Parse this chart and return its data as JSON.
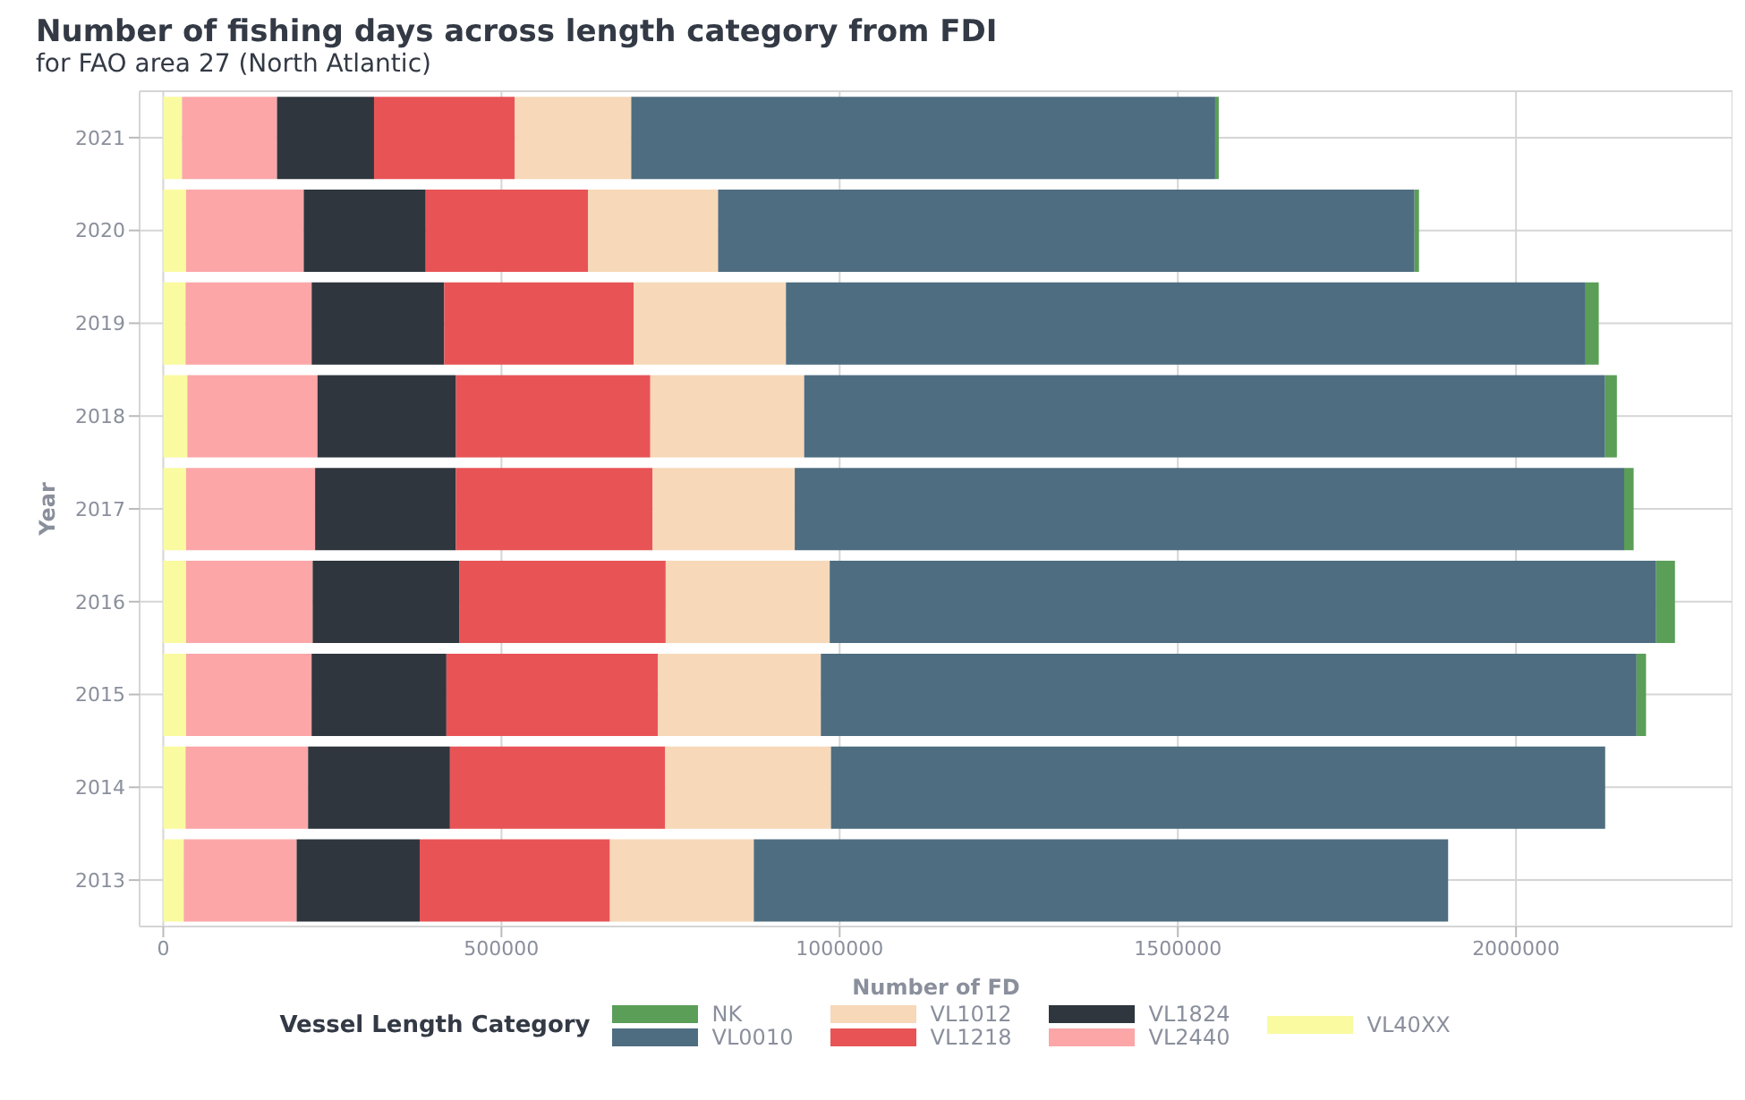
{
  "chart_data": {
    "type": "bar",
    "orientation": "horizontal",
    "stacked": true,
    "title": "Number of fishing days across length category from FDI",
    "subtitle": "for FAO area 27 (North Atlantic)",
    "xlabel": "Number of FD",
    "ylabel": "Year",
    "legend_title": "Vessel Length Category",
    "categories": [
      "2021",
      "2020",
      "2019",
      "2018",
      "2017",
      "2016",
      "2015",
      "2014",
      "2013"
    ],
    "series": [
      {
        "name": "VL40XX",
        "color": "#fafaa0",
        "values": [
          27700,
          33700,
          33000,
          35600,
          33700,
          33700,
          33700,
          33000,
          30300
        ]
      },
      {
        "name": "VL2440",
        "color": "#fca6a8",
        "values": [
          140500,
          174000,
          186400,
          192400,
          190800,
          187200,
          185600,
          181100,
          166900
        ]
      },
      {
        "name": "VL1824",
        "color": "#2f363d",
        "values": [
          143400,
          180300,
          195900,
          204800,
          208200,
          217200,
          199300,
          209800,
          181900
        ]
      },
      {
        "name": "VL1218",
        "color": "#e85456",
        "values": [
          208200,
          239900,
          280200,
          287300,
          290800,
          304700,
          312900,
          318200,
          281300
        ]
      },
      {
        "name": "VL1012",
        "color": "#f7d8b8",
        "values": [
          172100,
          192400,
          225100,
          227500,
          210100,
          242500,
          240700,
          245100,
          212700
        ]
      },
      {
        "name": "VL0010",
        "color": "#4e6d80",
        "values": [
          863300,
          1029600,
          1182200,
          1184100,
          1226300,
          1221800,
          1206000,
          1144600,
          1026500
        ]
      },
      {
        "name": "NK",
        "color": "#5a9e57",
        "values": [
          5300,
          6600,
          19500,
          17400,
          14000,
          27900,
          14000,
          0,
          0
        ]
      }
    ],
    "xlim": [
      -35000,
      2320000
    ],
    "xticks": [
      0,
      500000,
      1000000,
      1500000,
      2000000
    ],
    "grid": true,
    "legend": "bottom"
  }
}
